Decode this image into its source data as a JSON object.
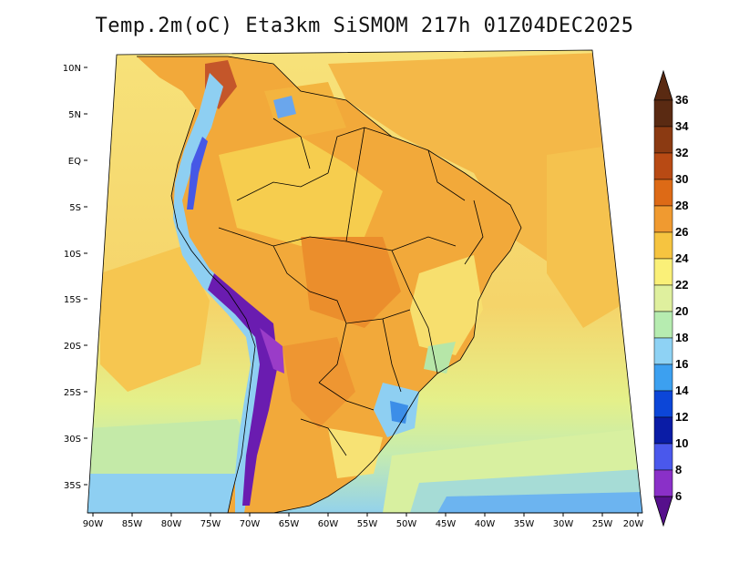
{
  "title": "Temp.2m(oC) Eta3km SiSMOM 217h 01Z04DEC2025",
  "axes": {
    "lat_labels": [
      "10N",
      "5N",
      "EQ",
      "5S",
      "10S",
      "15S",
      "20S",
      "25S",
      "30S",
      "35S"
    ],
    "lon_labels": [
      "90W",
      "85W",
      "80W",
      "75W",
      "70W",
      "65W",
      "60W",
      "55W",
      "50W",
      "45W",
      "40W",
      "35W",
      "30W",
      "25W",
      "20W"
    ]
  },
  "colorbar": {
    "labels": [
      "36",
      "34",
      "32",
      "30",
      "28",
      "26",
      "24",
      "22",
      "20",
      "18",
      "16",
      "14",
      "12",
      "10",
      "8",
      "6"
    ],
    "colors": [
      "#5a2a12",
      "#8b3a12",
      "#b84a14",
      "#dd6a16",
      "#f09a30",
      "#f6c440",
      "#faf078",
      "#dff09e",
      "#b6ecb0",
      "#8ed2f4",
      "#3ca0f0",
      "#0c46d8",
      "#0a1ca6",
      "#4a58ec",
      "#8a30c8",
      "#56108c"
    ],
    "units": "oC"
  },
  "regions": {
    "ocean_warm": "#f5c048",
    "ocean_mid": "#f7e27a",
    "ocean_cool": "#c8ecac",
    "ocean_cold": "#8ecff2",
    "land_hot": "#ee9a34",
    "andes_cold": "#6a1cb0"
  }
}
